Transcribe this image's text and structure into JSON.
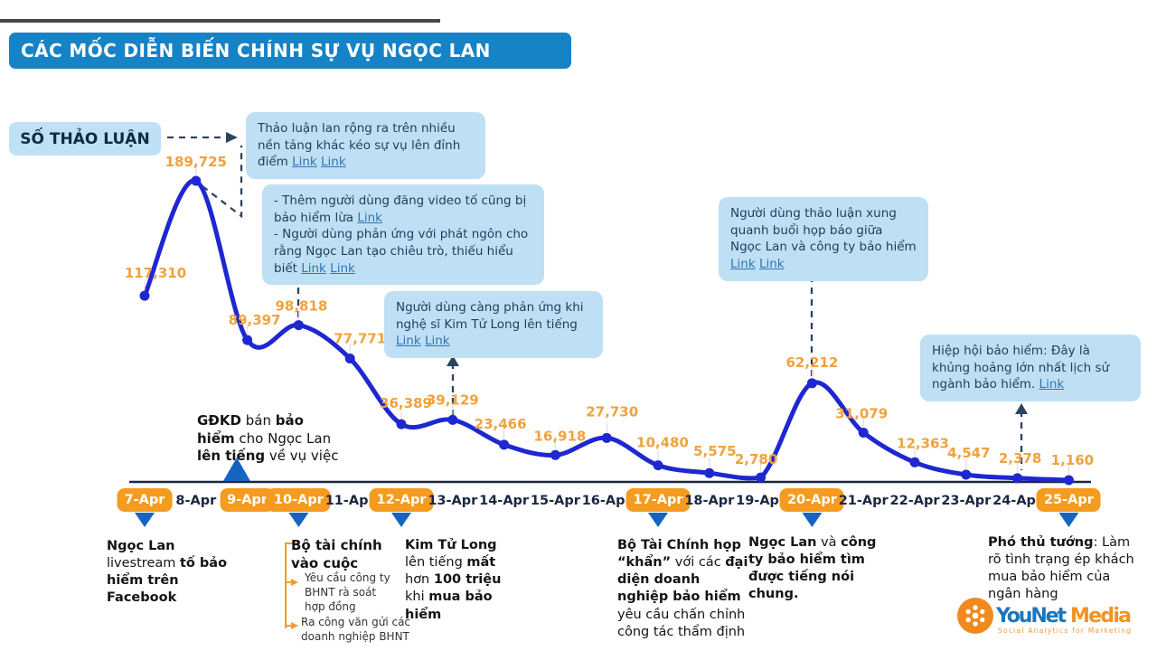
{
  "title": "CÁC MỐC DIỄN BIẾN CHÍNH SỰ VỤ NGỌC LAN",
  "y_axis_label": "SỐ THẢO LUẬN",
  "colors": {
    "title_bar": "#1583c6",
    "line": "#1e27d0",
    "value_label": "#f0a23c",
    "date_chip": "#f59b20",
    "callout_bg": "#bfe0f4",
    "callout_text": "#1d3d5f",
    "link": "#2e75b6",
    "axis": "#1a2742",
    "arrow_blue": "#1565c0",
    "connector": "#2d4460",
    "bracket": "#f59b20"
  },
  "chart_data": {
    "type": "line",
    "title": "CÁC MỐC DIỄN BIẾN CHÍNH SỰ VỤ NGỌC LAN",
    "ylabel": "SỐ THẢO LUẬN",
    "x": [
      "7-Apr",
      "8-Apr",
      "9-Apr",
      "10-Apr",
      "11-Apr",
      "12-Apr",
      "13-Apr",
      "14-Apr",
      "15-Apr",
      "16-Apr",
      "17-Apr",
      "18-Apr",
      "19-Apr",
      "20-Apr",
      "21-Apr",
      "22-Apr",
      "23-Apr",
      "24-Apr",
      "25-Apr"
    ],
    "values": [
      117310,
      189725,
      89397,
      98818,
      77771,
      36389,
      39129,
      23466,
      16918,
      27730,
      10480,
      5575,
      2780,
      62212,
      31079,
      12363,
      4547,
      2378,
      1160
    ],
    "value_labels": [
      "117,310",
      "189,725",
      "89,397",
      "98,818",
      "77,771",
      "36,389",
      "39,129",
      "23,466",
      "16,918",
      "27,730",
      "10,480",
      "5,575",
      "2,780",
      "62,212",
      "31,079",
      "12,363",
      "4,547",
      "2,378",
      "1,160"
    ],
    "highlighted_dates": [
      "7-Apr",
      "9-Apr",
      "10-Apr",
      "12-Apr",
      "17-Apr",
      "20-Apr",
      "25-Apr"
    ],
    "ylim": [
      0,
      200000
    ],
    "grid": false,
    "legend": false
  },
  "callouts": [
    {
      "segments": [
        {
          "t": "Thảo luận lan rộng ra trên nhiều nền tảng khác kéo sự vụ lên đỉnh điểm "
        },
        {
          "t": "Link",
          "link": true
        },
        {
          "t": " "
        },
        {
          "t": "Link",
          "link": true
        }
      ]
    },
    {
      "segments": [
        {
          "t": "- Thêm người dùng đăng video tố cũng bị bảo hiểm lừa "
        },
        {
          "t": "Link",
          "link": true
        },
        {
          "nl": true
        },
        {
          "t": "- Người dùng phản ứng với phát ngôn cho rằng Ngọc Lan tạo chiêu trò, thiếu hiểu biết "
        },
        {
          "t": "Link",
          "link": true
        },
        {
          "t": " "
        },
        {
          "t": "Link",
          "link": true
        }
      ]
    },
    {
      "segments": [
        {
          "t": "Người dùng càng phản ứng khi nghệ sĩ Kim Tử Long lên tiếng "
        },
        {
          "t": "Link",
          "link": true
        },
        {
          "t": " "
        },
        {
          "t": "Link",
          "link": true
        }
      ]
    },
    {
      "segments": [
        {
          "t": "Người dùng thảo luận xung quanh buổi họp báo giữa Ngọc Lan và công ty bảo hiểm "
        },
        {
          "t": "Link",
          "link": true
        },
        {
          "t": " "
        },
        {
          "t": "Link",
          "link": true
        }
      ]
    },
    {
      "segments": [
        {
          "t": "Hiệp hội bảo hiểm: Đây là khủng hoảng lớn nhất lịch sử ngành bảo hiểm. "
        },
        {
          "t": "Link",
          "link": true
        }
      ]
    }
  ],
  "annotations": {
    "gdkd": {
      "segments": [
        {
          "t": "GĐKD",
          "b": true
        },
        {
          "t": " bán "
        },
        {
          "t": "bảo hiểm",
          "b": true
        },
        {
          "t": " cho Ngọc Lan "
        },
        {
          "t": "lên tiếng",
          "b": true
        },
        {
          "t": " về vụ việc"
        }
      ]
    }
  },
  "events": [
    {
      "date": "7-Apr",
      "segments": [
        {
          "t": "Ngọc Lan",
          "b": true
        },
        {
          "t": " livestream "
        },
        {
          "t": "tố bảo hiểm trên Facebook",
          "b": true
        }
      ]
    },
    {
      "date": "10-Apr",
      "segments": [
        {
          "t": "Bộ tài chính vào cuộc",
          "b": true
        }
      ],
      "sub_items": [
        "Yêu cầu công ty BHNT  rà soát hợp đồng",
        "Ra công văn gửi các doanh nghiệp BHNT"
      ]
    },
    {
      "date": "12-Apr",
      "segments": [
        {
          "t": "Kim Tử Long",
          "b": true
        },
        {
          "t": " lên tiếng "
        },
        {
          "t": "mất",
          "b": true
        },
        {
          "t": " hơn "
        },
        {
          "t": "100 triệu",
          "b": true
        },
        {
          "t": " khi "
        },
        {
          "t": "mua bảo hiểm",
          "b": true
        }
      ]
    },
    {
      "date": "17-Apr",
      "segments": [
        {
          "t": "Bộ Tài Chính họp “khẩn”",
          "b": true
        },
        {
          "t": " với các "
        },
        {
          "t": "đại diện doanh nghiệp bảo hiểm",
          "b": true
        },
        {
          "t": " yêu cầu chấn chỉnh công tác thẩm định"
        }
      ]
    },
    {
      "date": "20-Apr",
      "segments": [
        {
          "t": "Ngọc Lan",
          "b": true
        },
        {
          "t": " và "
        },
        {
          "t": "công ty bảo hiểm tìm được tiếng nói chung.",
          "b": true
        }
      ]
    },
    {
      "date": "25-Apr",
      "segments": [
        {
          "t": "Phó thủ tướng",
          "b": true
        },
        {
          "t": ": Làm rõ tình trạng ép khách mua bảo hiểm của ngân hàng"
        }
      ]
    }
  ],
  "logo": {
    "name_blue": "YouNet",
    "name_orange": "Media",
    "tagline": "Social Analytics for Marketing"
  }
}
